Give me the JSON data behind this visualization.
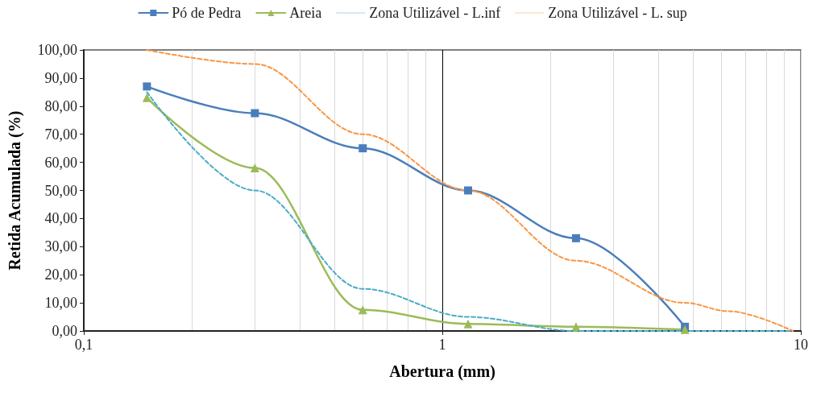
{
  "chart_data": {
    "type": "line",
    "xlabel": "Abertura (mm)",
    "ylabel": "Retida Acumulada (%)",
    "log": "x",
    "grid": "x",
    "legend": "top",
    "xlim": [
      0.1,
      10
    ],
    "xticks": [
      {
        "value": 0.1,
        "label": "0,1"
      },
      1,
      10
    ],
    "ylim": [
      0,
      100
    ],
    "yticks": [
      {
        "value": 0,
        "label": "0,00"
      },
      {
        "value": 10,
        "label": "10,00"
      },
      {
        "value": 20,
        "label": "20,00"
      },
      {
        "value": 30,
        "label": "30,00"
      },
      {
        "value": 40,
        "label": "40,00"
      },
      {
        "value": 50,
        "label": "50,00"
      },
      {
        "value": 60,
        "label": "60,00"
      },
      {
        "value": 70,
        "label": "70,00"
      },
      {
        "value": 80,
        "label": "80,00"
      },
      {
        "value": 90,
        "label": "90,00"
      },
      {
        "value": 100,
        "label": "100,00"
      }
    ],
    "series": [
      {
        "name": "Pó de Pedra",
        "color": "#4a7ebb",
        "marker": "square",
        "line_style": "solid",
        "x": [
          0.15,
          0.3,
          0.6,
          1.18,
          2.36,
          4.75
        ],
        "values": [
          87,
          77.5,
          65,
          50,
          33,
          1.5
        ]
      },
      {
        "name": "Areia",
        "color": "#9bbb59",
        "marker": "triangle",
        "line_style": "solid",
        "x": [
          0.15,
          0.3,
          0.6,
          1.18,
          2.36,
          4.75
        ],
        "values": [
          83,
          58,
          7.5,
          2.5,
          1.5,
          0.5
        ]
      },
      {
        "name": "Zona Utilizável - L.inf",
        "color": "#4bacc6",
        "marker": "none",
        "line_style": "dashed",
        "x": [
          0.15,
          0.3,
          0.6,
          1.18,
          2.36,
          4.75,
          9.5
        ],
        "values": [
          85,
          50,
          15,
          5,
          0,
          0,
          0
        ]
      },
      {
        "name": "Zona Utilizável - L. sup",
        "color": "#f79646",
        "marker": "none",
        "line_style": "dashed",
        "x": [
          0.15,
          0.3,
          0.6,
          1.18,
          2.36,
          4.75,
          6.3,
          9.5
        ],
        "values": [
          100,
          95,
          70,
          50,
          25,
          10,
          7,
          0
        ]
      }
    ]
  }
}
